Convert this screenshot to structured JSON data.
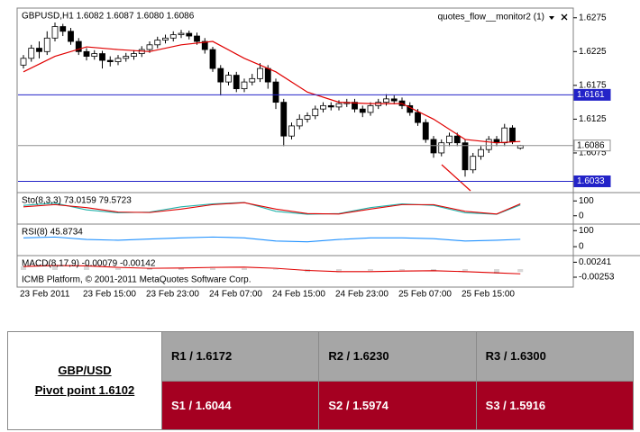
{
  "chart_data": [
    {
      "type": "candlestick",
      "title": "GBPUSD,H1  1.6082 1.6087 1.6080 1.6086",
      "indicator_label": "quotes_flow__monitor2 (1)",
      "watermark": "ICMB Platform, © 2001-2011 MetaQuotes Software Corp.",
      "categories": [
        "23 Feb 2011",
        null,
        null,
        null,
        null,
        null,
        null,
        null,
        "23 Feb 15:00",
        null,
        null,
        null,
        null,
        null,
        null,
        null,
        "23 Feb 23:00",
        null,
        null,
        null,
        null,
        null,
        null,
        null,
        "24 Feb 07:00",
        null,
        null,
        null,
        null,
        null,
        null,
        null,
        "24 Feb 15:00",
        null,
        null,
        null,
        null,
        null,
        null,
        null,
        "24 Feb 23:00",
        null,
        null,
        null,
        null,
        null,
        null,
        null,
        "25 Feb 07:00",
        null,
        null,
        null,
        null,
        null,
        null,
        null,
        "25 Feb 15:00",
        null,
        null,
        null,
        null,
        null,
        null,
        null
      ],
      "open": [
        1.6205,
        1.6215,
        1.623,
        1.6225,
        1.6245,
        1.6262,
        1.6255,
        1.624,
        1.6225,
        1.6218,
        1.6222,
        1.6212,
        1.621,
        1.6215,
        1.6218,
        1.6222,
        1.6228,
        1.6235,
        1.6242,
        1.6245,
        1.625,
        1.6252,
        1.6248,
        1.624,
        1.6228,
        1.62,
        1.618,
        1.619,
        1.617,
        1.618,
        1.6185,
        1.62,
        1.618,
        1.615,
        1.61,
        1.6115,
        1.6125,
        1.613,
        1.614,
        1.6145,
        1.6143,
        1.6148,
        1.615,
        1.614,
        1.6135,
        1.6145,
        1.615,
        1.6155,
        1.6152,
        1.6145,
        1.6135,
        1.612,
        1.6095,
        1.6075,
        1.609,
        1.61,
        1.609,
        1.605,
        1.607,
        1.608,
        1.6095,
        1.609,
        1.6112,
        1.6082
      ],
      "high": [
        1.622,
        1.6235,
        1.624,
        1.6255,
        1.6268,
        1.6266,
        1.626,
        1.6245,
        1.623,
        1.6227,
        1.6226,
        1.6218,
        1.622,
        1.6223,
        1.6227,
        1.6233,
        1.624,
        1.6247,
        1.625,
        1.6255,
        1.6257,
        1.6256,
        1.6253,
        1.6245,
        1.6232,
        1.6205,
        1.6195,
        1.6195,
        1.6185,
        1.6192,
        1.6208,
        1.6205,
        1.6185,
        1.6155,
        1.612,
        1.6132,
        1.6135,
        1.6145,
        1.615,
        1.615,
        1.6153,
        1.6155,
        1.6155,
        1.6145,
        1.615,
        1.6155,
        1.6162,
        1.616,
        1.6157,
        1.615,
        1.614,
        1.6125,
        1.61,
        1.6095,
        1.6105,
        1.6105,
        1.6095,
        1.6075,
        1.6085,
        1.61,
        1.61,
        1.6118,
        1.6116,
        1.6087
      ],
      "low": [
        1.62,
        1.621,
        1.6215,
        1.622,
        1.624,
        1.6248,
        1.6235,
        1.622,
        1.6212,
        1.6213,
        1.62,
        1.6203,
        1.6205,
        1.621,
        1.6213,
        1.6217,
        1.6223,
        1.623,
        1.6237,
        1.624,
        1.6245,
        1.6243,
        1.6235,
        1.6222,
        1.6195,
        1.616,
        1.6175,
        1.6165,
        1.6165,
        1.6175,
        1.618,
        1.617,
        1.614,
        1.6085,
        1.6095,
        1.611,
        1.612,
        1.6125,
        1.6135,
        1.6138,
        1.6138,
        1.6143,
        1.6135,
        1.6128,
        1.613,
        1.614,
        1.6145,
        1.6147,
        1.614,
        1.613,
        1.6115,
        1.609,
        1.6068,
        1.607,
        1.6085,
        1.6085,
        1.604,
        1.6045,
        1.6065,
        1.6075,
        1.6085,
        1.6085,
        1.6088,
        1.608
      ],
      "close": [
        1.6215,
        1.623,
        1.6225,
        1.6245,
        1.6262,
        1.6255,
        1.624,
        1.6225,
        1.6218,
        1.6222,
        1.6212,
        1.621,
        1.6215,
        1.6218,
        1.6222,
        1.6228,
        1.6235,
        1.6242,
        1.6245,
        1.625,
        1.6252,
        1.6248,
        1.624,
        1.6228,
        1.62,
        1.618,
        1.619,
        1.617,
        1.618,
        1.6185,
        1.62,
        1.618,
        1.615,
        1.61,
        1.6115,
        1.6125,
        1.613,
        1.614,
        1.6145,
        1.6143,
        1.6148,
        1.615,
        1.614,
        1.6135,
        1.6145,
        1.615,
        1.6155,
        1.6152,
        1.6145,
        1.6135,
        1.612,
        1.6095,
        1.6075,
        1.609,
        1.61,
        1.609,
        1.605,
        1.607,
        1.608,
        1.6095,
        1.609,
        1.6112,
        1.6092,
        1.6086
      ],
      "up_color": "#ffffff",
      "down_color": "#000000",
      "ma": {
        "color": "#e00000",
        "x": [
          0,
          4,
          8,
          12,
          16,
          20,
          24,
          28,
          32,
          36,
          40,
          44,
          48,
          52,
          56,
          60,
          63
        ],
        "values": [
          1.6195,
          1.6218,
          1.6232,
          1.6228,
          1.6225,
          1.6235,
          1.624,
          1.6215,
          1.6195,
          1.6165,
          1.615,
          1.6148,
          1.6148,
          1.6125,
          1.6095,
          1.609,
          1.6092
        ]
      },
      "hlines": [
        {
          "value": 1.6161,
          "color": "#2323c8",
          "text_color": "#ffffff"
        },
        {
          "value": 1.6086,
          "color": "#909090",
          "text_color": "#000000"
        },
        {
          "value": 1.6033,
          "color": "#2323c8",
          "text_color": "#ffffff"
        }
      ],
      "ylim": [
        1.6019,
        1.6288
      ],
      "yticks": [
        1.6275,
        1.6225,
        1.6175,
        1.6125,
        1.6075
      ]
    },
    {
      "type": "line",
      "title": "Sto(8,3,3) 73.0159 79.5723",
      "x": [
        0,
        4,
        8,
        12,
        16,
        20,
        24,
        28,
        32,
        36,
        40,
        44,
        48,
        52,
        56,
        60,
        63
      ],
      "series": [
        {
          "color": "#20b2aa",
          "values": [
            70,
            85,
            40,
            20,
            25,
            60,
            80,
            90,
            30,
            10,
            15,
            55,
            80,
            70,
            20,
            10,
            73
          ]
        },
        {
          "color": "#e00000",
          "values": [
            60,
            75,
            55,
            25,
            22,
            45,
            75,
            88,
            45,
            15,
            12,
            45,
            75,
            75,
            30,
            12,
            80
          ]
        }
      ],
      "ylim": [
        -50,
        150
      ],
      "yticks": [
        100,
        0
      ]
    },
    {
      "type": "line",
      "title": "RSI(8) 45.8734",
      "x": [
        0,
        4,
        8,
        12,
        16,
        20,
        24,
        28,
        32,
        36,
        40,
        44,
        48,
        52,
        56,
        60,
        63
      ],
      "series": [
        {
          "color": "#1e90ff",
          "values": [
            55,
            60,
            45,
            40,
            48,
            55,
            60,
            55,
            35,
            30,
            45,
            55,
            55,
            50,
            35,
            40,
            46
          ]
        }
      ],
      "ylim": [
        -50,
        135
      ],
      "yticks": [
        100,
        0
      ]
    },
    {
      "type": "line",
      "title": "MACD(8,17,9) -0.00079 -0.00142",
      "x": [
        0,
        4,
        8,
        12,
        16,
        20,
        24,
        28,
        32,
        36,
        40,
        44,
        48,
        52,
        56,
        60,
        63
      ],
      "series": [
        {
          "color": "#b0b0b0",
          "kind": "bar",
          "values": [
            0.0012,
            0.0015,
            0.001,
            0.0004,
            0.0003,
            0.0006,
            0.0009,
            0.0008,
            0.0001,
            -0.0008,
            -0.0009,
            -0.0006,
            -0.0002,
            -0.0003,
            -0.001,
            -0.0013,
            -0.00079
          ]
        },
        {
          "color": "#e00000",
          "values": [
            0.001,
            0.0013,
            0.0012,
            0.0007,
            0.0004,
            0.0005,
            0.0007,
            0.0008,
            0.0004,
            -0.0003,
            -0.0007,
            -0.0007,
            -0.0005,
            -0.0004,
            -0.0007,
            -0.0011,
            -0.00142
          ]
        }
      ],
      "ylim": [
        -0.0055,
        0.0043
      ],
      "yticks": [
        0.00241,
        -0.00253
      ]
    }
  ],
  "table": {
    "left": [
      "GBP/USD",
      "Pivot point 1.6102"
    ],
    "rows": [
      [
        "R1 / 1.6172",
        "R2 / 1.6230",
        "R3 / 1.6300"
      ],
      [
        "S1 / 1.6044",
        "S2 / 1.5974",
        "S3 / 1.5916"
      ]
    ]
  }
}
